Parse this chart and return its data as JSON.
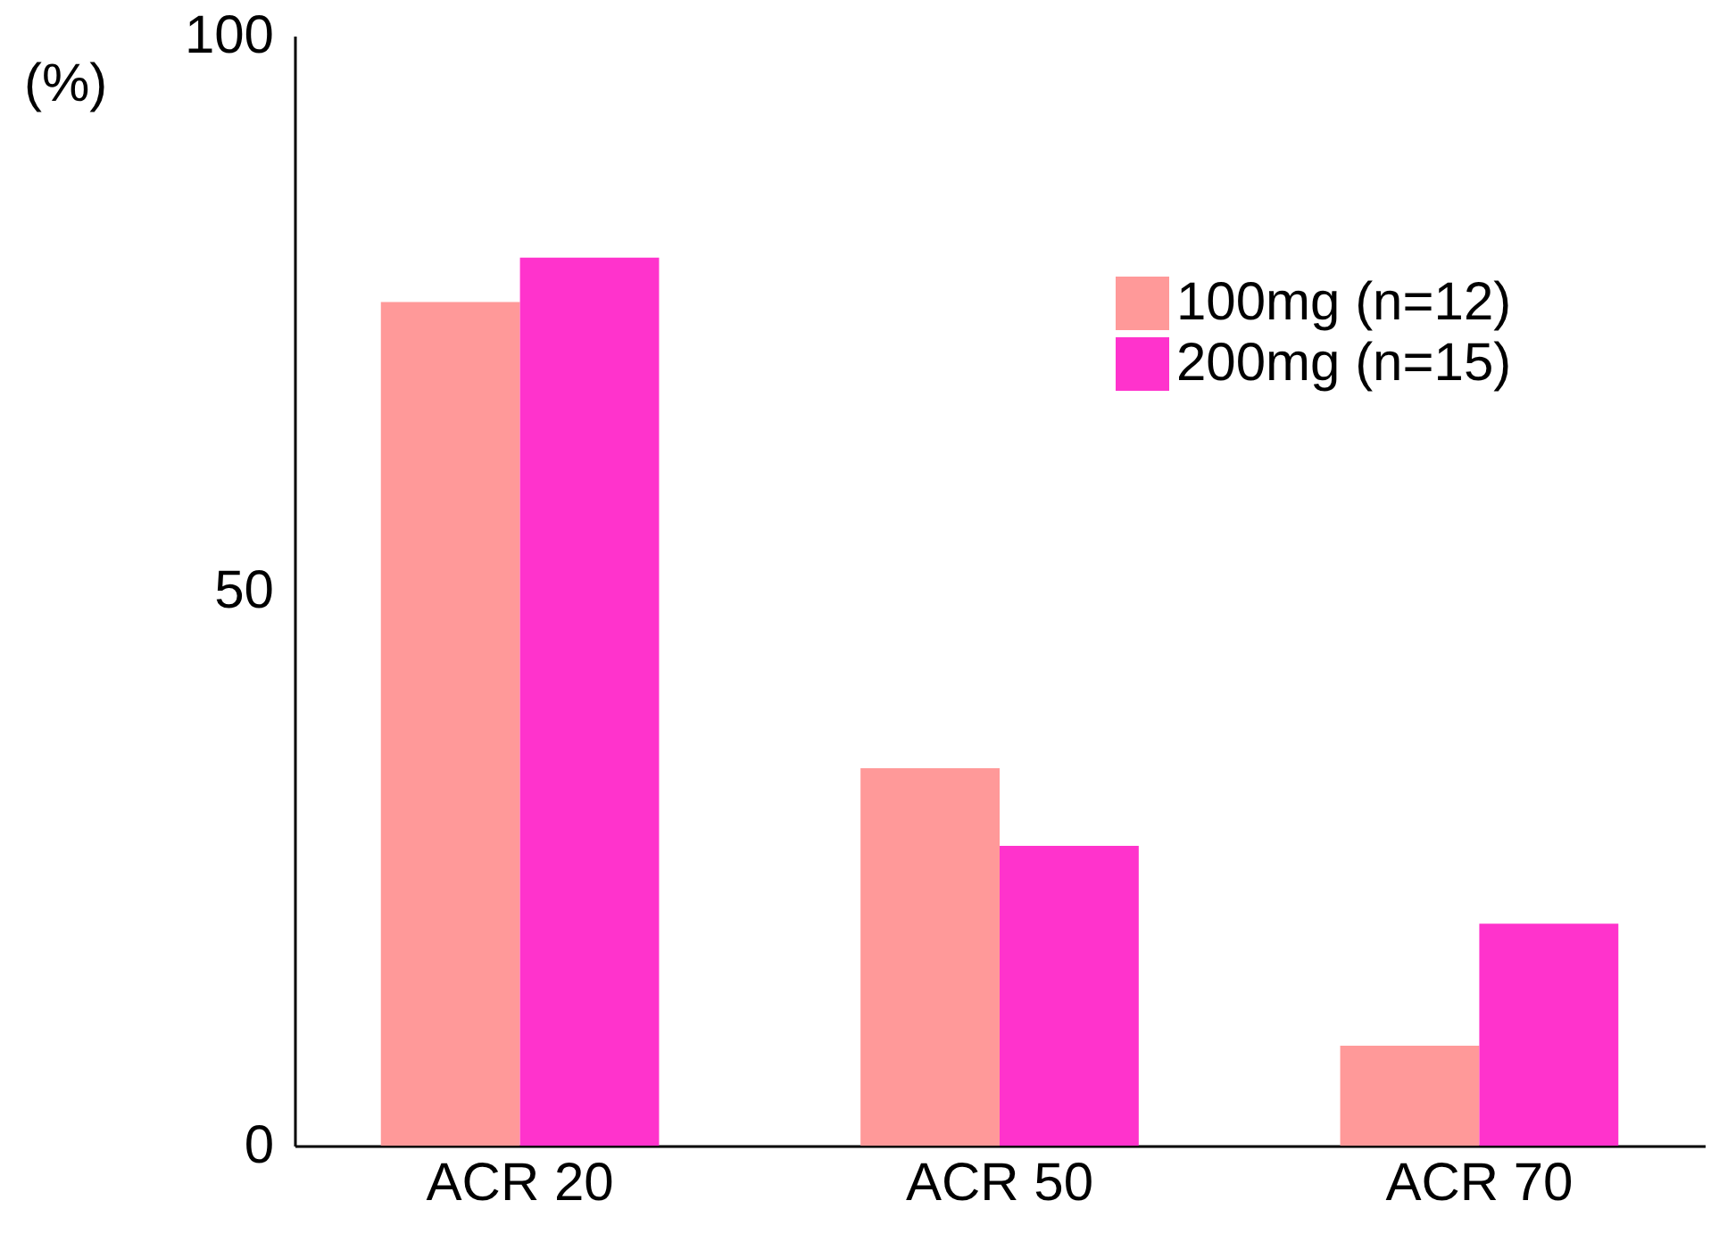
{
  "chart_data": {
    "type": "bar",
    "ylabel": "(%)",
    "categories": [
      "ACR 20",
      "ACR 50",
      "ACR 70"
    ],
    "series": [
      {
        "name": "100mg  (n=12)",
        "color": "#ff9999",
        "values": [
          76,
          34,
          9
        ]
      },
      {
        "name": "200mg  (n=15)",
        "color": "#ff33cc",
        "values": [
          80,
          27,
          20
        ]
      }
    ],
    "ylim": [
      0,
      100
    ],
    "yticks": [
      0,
      50,
      100
    ],
    "grid": false,
    "legend": "top right"
  }
}
